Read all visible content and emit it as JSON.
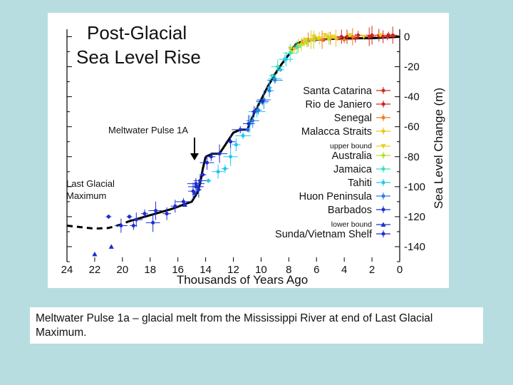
{
  "caption": "Meltwater Pulse 1a – glacial melt from the Mississippi River at end of Last Glacial Maximum.",
  "chart_data": {
    "type": "scatter",
    "title_lines": [
      "Post-Glacial",
      "Sea Level Rise"
    ],
    "xlabel": "Thousands of Years Ago",
    "ylabel": "Sea Level Change (m)",
    "xlim": [
      24,
      0
    ],
    "ylim": [
      -150,
      5
    ],
    "x_ticks": [
      "24",
      "22",
      "20",
      "18",
      "16",
      "14",
      "12",
      "10",
      "8",
      "6",
      "4",
      "2",
      "0"
    ],
    "y_ticks": [
      "0",
      "-20",
      "-40",
      "-60",
      "-80",
      "-100",
      "-120",
      "-140"
    ],
    "annotations": {
      "meltwater": "Meltwater Pulse 1A",
      "lgm_line1": "Last Glacial",
      "lgm_line2": "Maximum"
    },
    "curve": {
      "x": [
        14.0,
        13.5,
        13.0,
        12.0,
        11.5,
        11.0,
        10.5,
        10.0,
        9.5,
        9.0,
        8.5,
        8.0,
        7.5,
        7.0,
        6.0,
        4.0,
        2.0,
        0.0
      ],
      "y": [
        -80,
        -78,
        -78,
        -64,
        -62,
        -62,
        -51,
        -42,
        -33,
        -25,
        -18,
        -12,
        -5,
        -3,
        -2,
        -1,
        -1,
        0
      ]
    },
    "curve_lgm": {
      "x": [
        19.5,
        18.0,
        16.5,
        15.0,
        14.6,
        14.4,
        14.2,
        14.0
      ],
      "y": [
        -123,
        -119,
        -115,
        -110,
        -104,
        -98,
        -88,
        -80
      ]
    },
    "curve_dashed": {
      "x": [
        24.0,
        23.0,
        22.0,
        21.0,
        20.2,
        19.5
      ],
      "y": [
        -126,
        -127,
        -128,
        -127.5,
        -125.5,
        -123
      ]
    },
    "series": [
      {
        "name": "Santa Catarina",
        "color": "#cc2a1e",
        "marker": "circle",
        "x": [
          4.5,
          3.8,
          3.0,
          2.2,
          1.5,
          0.9,
          0.5
        ],
        "y": [
          -1,
          0,
          1,
          0,
          1,
          0,
          1
        ]
      },
      {
        "name": "Rio de Janiero",
        "color": "#d42020",
        "marker": "circle",
        "x": [
          5.5,
          4.2,
          3.2,
          2.0,
          1.2,
          0.8
        ],
        "y": [
          -2,
          0,
          -1,
          1,
          0,
          1
        ]
      },
      {
        "name": "Senegal",
        "color": "#f07a22",
        "marker": "circle",
        "x": [
          7.0,
          6.6,
          6.1,
          5.6,
          5.0,
          4.0,
          3.4
        ],
        "y": [
          -4,
          -2,
          -1,
          -2,
          -1,
          -2,
          0
        ]
      },
      {
        "name": "Malacca Straits",
        "color": "#f2c419",
        "marker": "circle",
        "x": [
          7.6,
          7.3,
          6.9,
          6.4,
          5.8,
          5.2,
          4.6
        ],
        "y": [
          -8,
          -6,
          -3,
          -2,
          -1,
          0,
          -1
        ]
      },
      {
        "name": "upper bound",
        "color": "#e8d21c",
        "marker": "tri-down",
        "small_label": true,
        "x": [
          7.9,
          7.2,
          6.8,
          6.2,
          5.9,
          5.4,
          4.8,
          3.6,
          2.6,
          1.4
        ],
        "y": [
          -8,
          -6,
          -2,
          0,
          -1,
          1,
          0,
          1,
          0,
          1
        ]
      },
      {
        "name": "Australia",
        "color": "#b6e02c",
        "marker": "circle",
        "x": [
          7.8,
          7.1,
          6.7,
          6.2,
          5.1
        ],
        "y": [
          -10,
          -5,
          -4,
          -2,
          -1
        ]
      },
      {
        "name": "Jamaica",
        "color": "#36e0c0",
        "marker": "circle",
        "x": [
          9.2,
          8.8,
          8.3,
          7.9,
          7.4
        ],
        "y": [
          -26,
          -20,
          -15,
          -11,
          -7
        ]
      },
      {
        "name": "Tahiti",
        "color": "#1ec8f0",
        "marker": "circle",
        "x": [
          13.8,
          13.1,
          12.6,
          12.2,
          11.8,
          11.3,
          10.8,
          10.3,
          9.9,
          9.4,
          9.0,
          8.6,
          8.2
        ],
        "y": [
          -96,
          -90,
          -88,
          -80,
          -72,
          -66,
          -58,
          -50,
          -44,
          -34,
          -28,
          -22,
          -15
        ]
      },
      {
        "name": "Huon Peninsula",
        "color": "#2a7ee8",
        "marker": "circle",
        "x": [
          11.0,
          10.6,
          10.2,
          9.8,
          9.4,
          9.0
        ],
        "y": [
          -62,
          -56,
          -49,
          -42,
          -36,
          -29
        ]
      },
      {
        "name": "Barbados",
        "color": "#1c2ecf",
        "marker": "circle",
        "x": [
          19.5,
          19.0,
          18.4,
          17.8,
          16.8,
          15.6,
          14.9,
          14.7,
          14.6,
          14.5,
          14.4,
          14.2,
          13.9,
          13.6,
          13.0,
          12.2,
          11.5,
          10.9,
          10.5,
          9.9
        ],
        "y": [
          -120,
          -122,
          -118,
          -124,
          -118,
          -110,
          -103,
          -98,
          -100,
          -102,
          -96,
          -92,
          -84,
          -80,
          -78,
          -70,
          -62,
          -58,
          -50,
          -43
        ]
      },
      {
        "name": "lower bound",
        "color": "#1c2ecf",
        "marker": "tri-up",
        "small_label": true,
        "x": [
          22.0,
          20.8,
          15.5,
          14.8
        ],
        "y": [
          -145,
          -140,
          -112,
          -104
        ]
      },
      {
        "name": "Sunda/Vietnam Shelf",
        "color": "#1c2ecf",
        "marker": "circle",
        "x": [
          21.0,
          20.1,
          19.2,
          17.6,
          16.2,
          14.7
        ],
        "y": [
          -120,
          -126,
          -126,
          -116,
          -113,
          -100
        ]
      }
    ]
  }
}
